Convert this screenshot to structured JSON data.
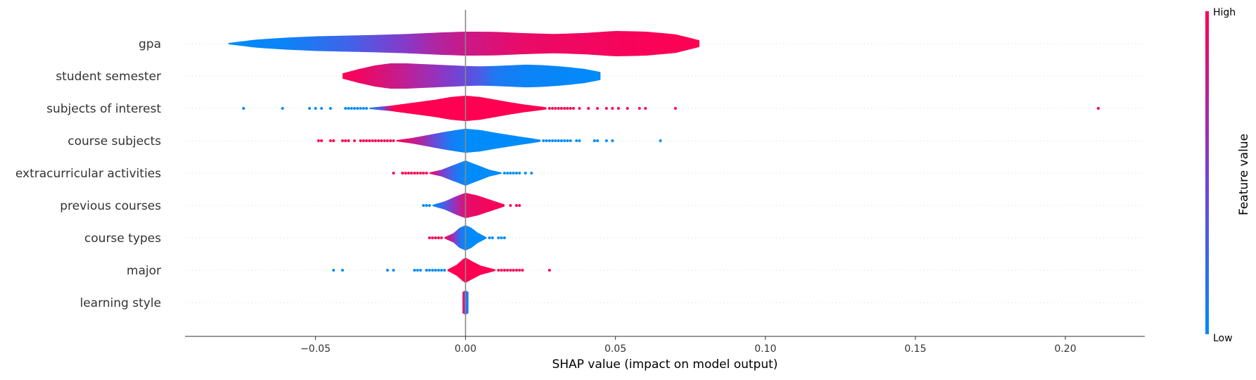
{
  "chart_data": {
    "type": "violin",
    "xlabel": "SHAP value (impact on model output)",
    "xlim": [
      -0.0935,
      0.2265
    ],
    "xticks": [
      -0.05,
      0.0,
      0.05,
      0.1,
      0.15,
      0.2
    ],
    "xtick_labels": [
      "−0.05",
      "0.00",
      "0.05",
      "0.10",
      "0.15",
      "0.20"
    ],
    "colorbar": {
      "title": "Feature value",
      "high_label": "High",
      "low_label": "Low",
      "high_color": "#ff0052",
      "low_color": "#008bfb",
      "mid_color": "#7a3fd6"
    },
    "features": [
      {
        "name": "gpa",
        "min": -0.079,
        "max": 0.078,
        "profile": [
          [
            -0.079,
            0.05
          ],
          [
            -0.07,
            0.3
          ],
          [
            -0.06,
            0.45
          ],
          [
            -0.05,
            0.55
          ],
          [
            -0.04,
            0.6
          ],
          [
            -0.03,
            0.65
          ],
          [
            -0.02,
            0.72
          ],
          [
            -0.01,
            0.82
          ],
          [
            0.0,
            0.9
          ],
          [
            0.01,
            0.88
          ],
          [
            0.02,
            0.78
          ],
          [
            0.03,
            0.72
          ],
          [
            0.04,
            0.8
          ],
          [
            0.05,
            0.95
          ],
          [
            0.06,
            0.9
          ],
          [
            0.07,
            0.7
          ],
          [
            0.078,
            0.25
          ]
        ],
        "colors": [
          [
            -0.079,
            0.0
          ],
          [
            -0.06,
            0.05
          ],
          [
            -0.04,
            0.25
          ],
          [
            -0.02,
            0.55
          ],
          [
            -0.01,
            0.7
          ],
          [
            0.0,
            0.8
          ],
          [
            0.02,
            0.92
          ],
          [
            0.078,
            1.0
          ]
        ],
        "dots": [],
        "dot_colors": []
      },
      {
        "name": "student semester",
        "min": -0.041,
        "max": 0.045,
        "profile": [
          [
            -0.041,
            0.2
          ],
          [
            -0.035,
            0.55
          ],
          [
            -0.03,
            0.8
          ],
          [
            -0.025,
            0.95
          ],
          [
            -0.02,
            0.95
          ],
          [
            -0.015,
            0.9
          ],
          [
            -0.01,
            0.85
          ],
          [
            -0.005,
            0.8
          ],
          [
            0.0,
            0.75
          ],
          [
            0.005,
            0.72
          ],
          [
            0.01,
            0.75
          ],
          [
            0.015,
            0.8
          ],
          [
            0.02,
            0.85
          ],
          [
            0.025,
            0.82
          ],
          [
            0.03,
            0.75
          ],
          [
            0.035,
            0.65
          ],
          [
            0.04,
            0.52
          ],
          [
            0.045,
            0.3
          ]
        ],
        "colors": [
          [
            -0.041,
            1.0
          ],
          [
            -0.03,
            0.88
          ],
          [
            -0.02,
            0.75
          ],
          [
            -0.01,
            0.6
          ],
          [
            0.0,
            0.42
          ],
          [
            0.005,
            0.3
          ],
          [
            0.01,
            0.12
          ],
          [
            0.02,
            0.05
          ],
          [
            0.045,
            0.0
          ]
        ],
        "dots": [],
        "dot_colors": []
      },
      {
        "name": "subjects of interest",
        "min": -0.032,
        "max": 0.027,
        "profile": [
          [
            -0.032,
            0.05
          ],
          [
            -0.025,
            0.2
          ],
          [
            -0.02,
            0.35
          ],
          [
            -0.015,
            0.5
          ],
          [
            -0.01,
            0.65
          ],
          [
            -0.005,
            0.85
          ],
          [
            0.0,
            0.95
          ],
          [
            0.005,
            0.85
          ],
          [
            0.01,
            0.65
          ],
          [
            0.015,
            0.45
          ],
          [
            0.02,
            0.28
          ],
          [
            0.027,
            0.08
          ]
        ],
        "colors": [
          [
            -0.032,
            0.0
          ],
          [
            -0.028,
            0.4
          ],
          [
            -0.024,
            1.0
          ],
          [
            0.027,
            1.0
          ]
        ],
        "dots": [
          -0.074,
          -0.061,
          -0.052,
          -0.05,
          -0.048,
          -0.045,
          -0.04,
          -0.039,
          -0.038,
          -0.037,
          -0.036,
          -0.035,
          -0.034,
          -0.033,
          0.028,
          0.029,
          0.03,
          0.031,
          0.032,
          0.033,
          0.034,
          0.035,
          0.036,
          0.038,
          0.041,
          0.044,
          0.047,
          0.049,
          0.051,
          0.054,
          0.058,
          0.06,
          0.07,
          0.211
        ],
        "dot_colors": [
          0,
          0,
          0,
          0,
          0,
          0,
          0,
          0,
          0,
          0,
          0,
          0,
          0,
          0,
          1,
          1,
          1,
          1,
          1,
          1,
          1,
          1,
          1,
          1,
          1,
          1,
          1,
          1,
          1,
          1,
          1,
          1,
          1,
          1
        ]
      },
      {
        "name": "course subjects",
        "min": -0.023,
        "max": 0.025,
        "profile": [
          [
            -0.023,
            0.05
          ],
          [
            -0.018,
            0.2
          ],
          [
            -0.012,
            0.45
          ],
          [
            -0.006,
            0.7
          ],
          [
            0.0,
            0.9
          ],
          [
            0.005,
            0.8
          ],
          [
            0.01,
            0.6
          ],
          [
            0.015,
            0.42
          ],
          [
            0.02,
            0.25
          ],
          [
            0.025,
            0.08
          ]
        ],
        "colors": [
          [
            -0.023,
            1.0
          ],
          [
            -0.015,
            0.7
          ],
          [
            -0.01,
            0.4
          ],
          [
            -0.005,
            0.1
          ],
          [
            0.0,
            0.0
          ],
          [
            0.025,
            0.0
          ]
        ],
        "dots": [
          -0.049,
          -0.048,
          -0.045,
          -0.044,
          -0.041,
          -0.04,
          -0.039,
          -0.037,
          -0.035,
          -0.034,
          -0.033,
          -0.032,
          -0.031,
          -0.03,
          -0.029,
          -0.028,
          -0.027,
          -0.026,
          -0.025,
          -0.024,
          0.026,
          0.027,
          0.028,
          0.029,
          0.03,
          0.031,
          0.032,
          0.033,
          0.034,
          0.035,
          0.037,
          0.038,
          0.043,
          0.044,
          0.047,
          0.049,
          0.065
        ],
        "dot_colors": [
          1,
          1,
          1,
          1,
          1,
          1,
          1,
          1,
          1,
          1,
          1,
          1,
          1,
          1,
          1,
          1,
          1,
          1,
          1,
          1,
          0,
          0,
          0,
          0,
          0,
          0,
          0,
          0,
          0,
          0,
          0,
          0,
          0,
          0,
          0,
          0,
          0
        ]
      },
      {
        "name": "extracurricular activities",
        "min": -0.012,
        "max": 0.012,
        "profile": [
          [
            -0.012,
            0.05
          ],
          [
            -0.008,
            0.25
          ],
          [
            -0.004,
            0.6
          ],
          [
            0.0,
            0.95
          ],
          [
            0.004,
            0.6
          ],
          [
            0.008,
            0.25
          ],
          [
            0.012,
            0.05
          ]
        ],
        "colors": [
          [
            -0.012,
            1.0
          ],
          [
            -0.008,
            0.55
          ],
          [
            -0.004,
            0.2
          ],
          [
            0.0,
            0.0
          ],
          [
            0.012,
            0.0
          ]
        ],
        "dots": [
          -0.024,
          -0.021,
          -0.02,
          -0.019,
          -0.018,
          -0.017,
          -0.016,
          -0.015,
          -0.014,
          -0.013,
          0.013,
          0.014,
          0.015,
          0.016,
          0.017,
          0.018,
          0.02,
          0.022
        ],
        "dot_colors": [
          1,
          1,
          1,
          1,
          1,
          1,
          1,
          1,
          1,
          1,
          0,
          0,
          0,
          0,
          0,
          0,
          0,
          0
        ]
      },
      {
        "name": "previous courses",
        "min": -0.011,
        "max": 0.013,
        "profile": [
          [
            -0.011,
            0.05
          ],
          [
            -0.007,
            0.3
          ],
          [
            -0.003,
            0.7
          ],
          [
            0.0,
            0.95
          ],
          [
            0.004,
            0.75
          ],
          [
            0.008,
            0.45
          ],
          [
            0.013,
            0.08
          ]
        ],
        "colors": [
          [
            -0.011,
            0.0
          ],
          [
            -0.007,
            0.3
          ],
          [
            -0.003,
            0.65
          ],
          [
            0.0,
            0.9
          ],
          [
            0.013,
            1.0
          ]
        ],
        "dots": [
          -0.014,
          -0.013,
          -0.012,
          0.015,
          0.017,
          0.018
        ],
        "dot_colors": [
          0,
          0,
          0,
          1,
          1,
          1
        ]
      },
      {
        "name": "course types",
        "min": -0.007,
        "max": 0.007,
        "profile": [
          [
            -0.007,
            0.05
          ],
          [
            -0.004,
            0.35
          ],
          [
            -0.002,
            0.75
          ],
          [
            0.0,
            0.95
          ],
          [
            0.002,
            0.75
          ],
          [
            0.004,
            0.4
          ],
          [
            0.007,
            0.05
          ]
        ],
        "colors": [
          [
            -0.007,
            1.0
          ],
          [
            -0.004,
            0.6
          ],
          [
            -0.002,
            0.2
          ],
          [
            0.0,
            0.0
          ],
          [
            0.007,
            0.0
          ]
        ],
        "dots": [
          -0.012,
          -0.011,
          -0.01,
          -0.009,
          -0.008,
          0.008,
          0.009,
          0.011,
          0.012,
          0.013
        ],
        "dot_colors": [
          1,
          1,
          1,
          1,
          1,
          0,
          0,
          0,
          0,
          0
        ]
      },
      {
        "name": "major",
        "min": -0.006,
        "max": 0.01,
        "profile": [
          [
            -0.006,
            0.05
          ],
          [
            -0.003,
            0.4
          ],
          [
            -0.001,
            0.8
          ],
          [
            0.0,
            0.95
          ],
          [
            0.002,
            0.7
          ],
          [
            0.005,
            0.35
          ],
          [
            0.01,
            0.05
          ]
        ],
        "colors": [
          [
            -0.006,
            1.0
          ],
          [
            0.01,
            1.0
          ]
        ],
        "dots": [
          -0.044,
          -0.041,
          -0.026,
          -0.024,
          -0.017,
          -0.016,
          -0.015,
          -0.013,
          -0.012,
          -0.011,
          -0.01,
          -0.009,
          -0.008,
          -0.007,
          0.011,
          0.012,
          0.013,
          0.014,
          0.015,
          0.016,
          0.017,
          0.018,
          0.019,
          0.028
        ],
        "dot_colors": [
          0,
          0,
          0,
          0,
          0,
          0,
          0,
          0,
          0,
          0,
          0,
          0,
          0,
          0,
          1,
          1,
          1,
          1,
          1,
          1,
          1,
          1,
          1,
          1
        ]
      },
      {
        "name": "learning style",
        "min": -0.001,
        "max": 0.001,
        "profile": [
          [
            -0.001,
            0.8
          ],
          [
            0.0,
            0.9
          ],
          [
            0.001,
            0.8
          ]
        ],
        "colors": [
          [
            -0.001,
            1.0
          ],
          [
            0.0,
            0.35
          ],
          [
            0.001,
            0.0
          ]
        ],
        "dots": [],
        "dot_colors": []
      }
    ]
  }
}
